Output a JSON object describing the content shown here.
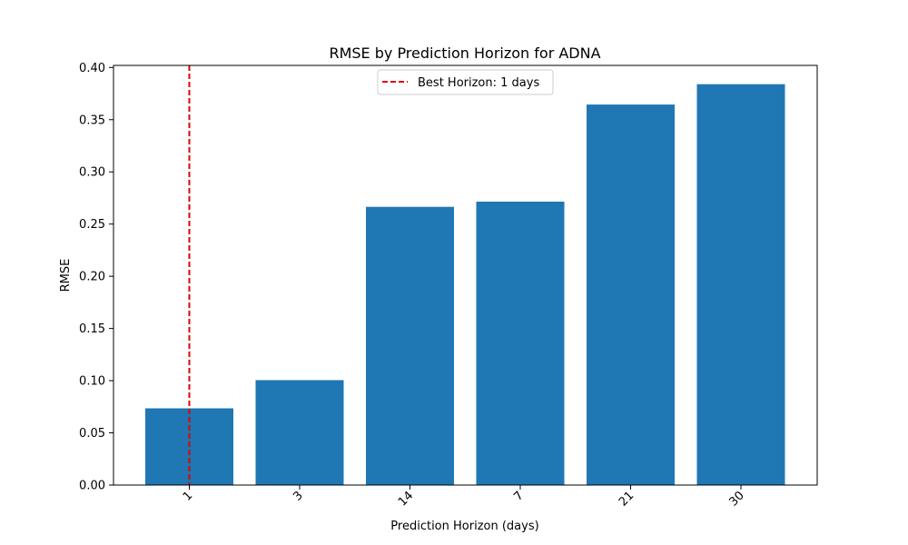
{
  "chart_data": {
    "type": "bar",
    "title": "RMSE by Prediction Horizon for ADNA",
    "xlabel": "Prediction Horizon (days)",
    "ylabel": "RMSE",
    "categories": [
      "1",
      "3",
      "14",
      "7",
      "21",
      "30"
    ],
    "values": [
      0.0735,
      0.1005,
      0.2665,
      0.2715,
      0.3645,
      0.384
    ],
    "ylim": [
      0,
      0.402
    ],
    "yticks": [
      "0.00",
      "0.05",
      "0.10",
      "0.15",
      "0.20",
      "0.25",
      "0.30",
      "0.35",
      "0.40"
    ],
    "grid": false,
    "bar_color": "#1f77b4",
    "reference_line": {
      "category": "1",
      "style": "dashed",
      "color": "#e00000",
      "label": "Best Horizon: 1 days"
    },
    "legend_position": "upper-center"
  }
}
